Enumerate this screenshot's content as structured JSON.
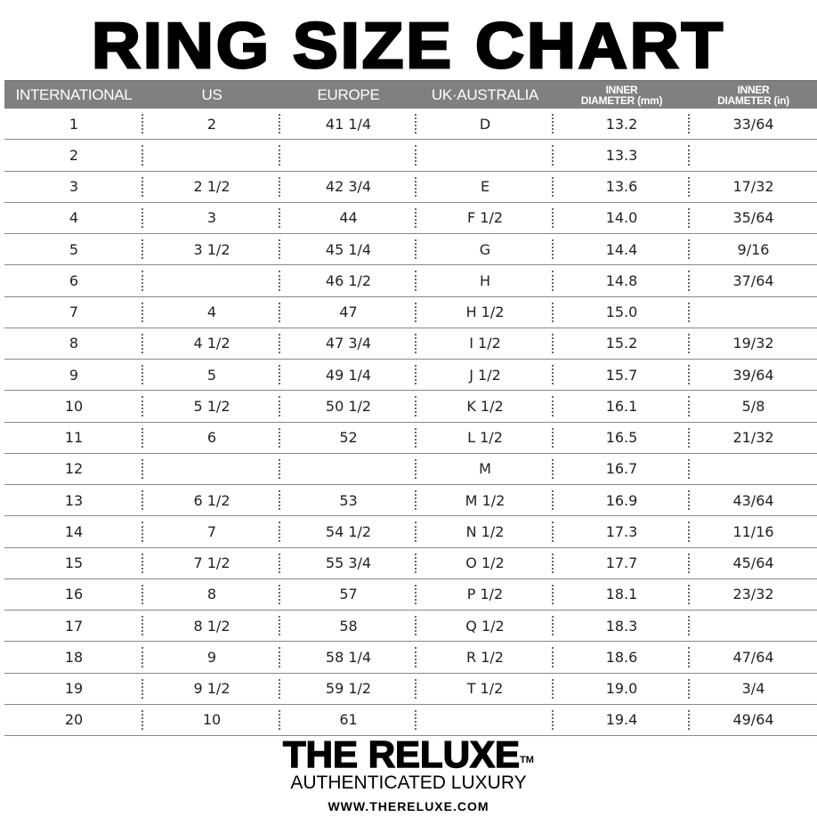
{
  "title": "RING SIZE CHART",
  "headers": [
    {
      "line1": "INTERNATIONAL"
    },
    {
      "line1": "US"
    },
    {
      "line1": "EUROPE"
    },
    {
      "line1": "UK·AUSTRALIA"
    },
    {
      "line1": "INNER",
      "line2": "DIAMETER (mm)"
    },
    {
      "line1": "INNER",
      "line2": "DIAMETER (in)"
    }
  ],
  "rows": [
    [
      "1",
      "2",
      "41 1/4",
      "D",
      "13.2",
      "33/64"
    ],
    [
      "2",
      "",
      "",
      "",
      "13.3",
      ""
    ],
    [
      "3",
      "2 1/2",
      "42 3/4",
      "E",
      "13.6",
      "17/32"
    ],
    [
      "4",
      "3",
      "44",
      "F 1/2",
      "14.0",
      "35/64"
    ],
    [
      "5",
      "3 1/2",
      "45 1/4",
      "G",
      "14.4",
      "9/16"
    ],
    [
      "6",
      "",
      "46 1/2",
      "H",
      "14.8",
      "37/64"
    ],
    [
      "7",
      "4",
      "47",
      "H 1/2",
      "15.0",
      ""
    ],
    [
      "8",
      "4 1/2",
      "47 3/4",
      "I 1/2",
      "15.2",
      "19/32"
    ],
    [
      "9",
      "5",
      "49 1/4",
      "J 1/2",
      "15.7",
      "39/64"
    ],
    [
      "10",
      "5 1/2",
      "50 1/2",
      "K 1/2",
      "16.1",
      "5/8"
    ],
    [
      "11",
      "6",
      "52",
      "L 1/2",
      "16.5",
      "21/32"
    ],
    [
      "12",
      "",
      "",
      "M",
      "16.7",
      ""
    ],
    [
      "13",
      "6 1/2",
      "53",
      "M 1/2",
      "16.9",
      "43/64"
    ],
    [
      "14",
      "7",
      "54 1/2",
      "N 1/2",
      "17.3",
      "11/16"
    ],
    [
      "15",
      "7 1/2",
      "55 3/4",
      "O 1/2",
      "17.7",
      "45/64"
    ],
    [
      "16",
      "8",
      "57",
      "P 1/2",
      "18.1",
      "23/32"
    ],
    [
      "17",
      "8 1/2",
      "58",
      "Q 1/2",
      "18.3",
      ""
    ],
    [
      "18",
      "9",
      "58 1/4",
      "R 1/2",
      "18.6",
      "47/64"
    ],
    [
      "19",
      "9 1/2",
      "59 1/2",
      "T 1/2",
      "19.0",
      "3/4"
    ],
    [
      "20",
      "10",
      "61",
      "",
      "19.4",
      "49/64"
    ]
  ],
  "brand": {
    "name": "THE RELUXE",
    "trademark": "TM",
    "tagline": "AUTHENTICATED LUXURY",
    "url": "WWW.THERELUXE.COM"
  },
  "colors": {
    "header_bg": "#808080",
    "header_text": "#ffffff"
  }
}
